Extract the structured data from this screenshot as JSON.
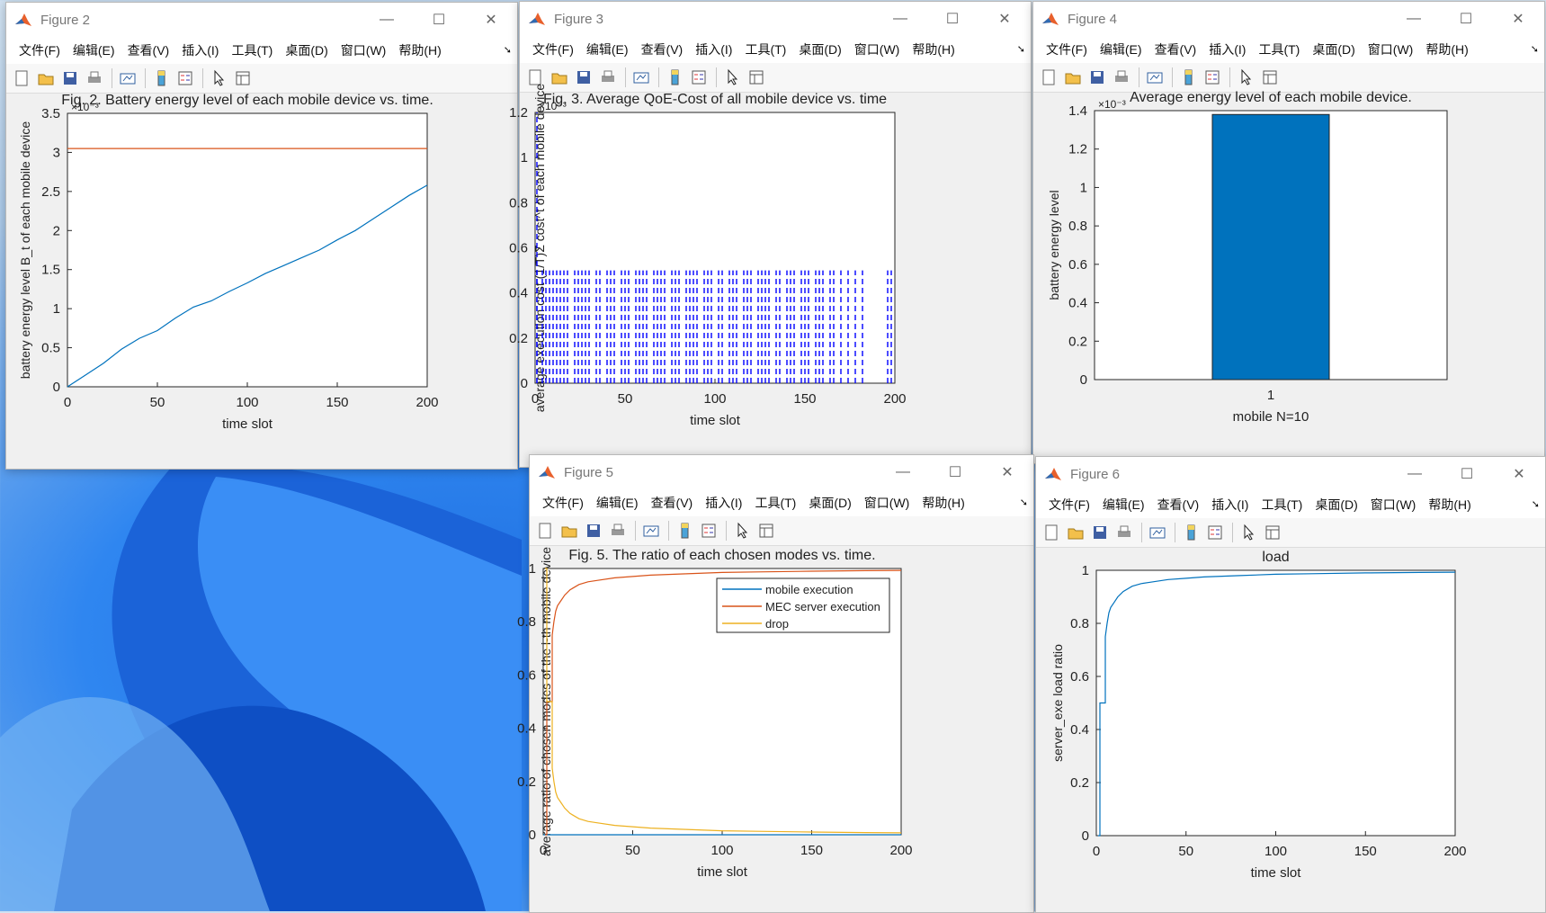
{
  "menu": [
    "文件(F)",
    "编辑(E)",
    "查看(V)",
    "插入(I)",
    "工具(T)",
    "桌面(D)",
    "窗口(W)",
    "帮助(H)"
  ],
  "more_glyph": "➘",
  "icons": [
    "new-file-icon",
    "open-folder-icon",
    "save-icon",
    "print-icon",
    "link-plot-icon",
    "colorbar-icon",
    "legend-icon",
    "pointer-icon",
    "property-inspector-icon"
  ],
  "controls": {
    "minimize": "—",
    "maximize": "☐",
    "close": "✕"
  },
  "colors": {
    "blue": "#0072bd",
    "orange": "#d95319",
    "yellow": "#edb120",
    "bar": "#0072bd",
    "dashed": "#0000ff"
  },
  "windows": {
    "fig2": {
      "title": "Figure 2",
      "chart_data": {
        "type": "line",
        "title": "Fig. 2. Battery energy level of each mobile device vs. time.",
        "xlabel": "time slot",
        "ylabel": "battery energy level B_t of each mobile device",
        "exponent_label": "×10⁻³",
        "xlim": [
          0,
          200
        ],
        "ylim": [
          0,
          3.5
        ],
        "xticks": [
          "0",
          "50",
          "100",
          "150",
          "200"
        ],
        "yticks": [
          "0",
          "0.5",
          "1",
          "1.5",
          "2",
          "2.5",
          "3",
          "3.5"
        ],
        "series": [
          {
            "color": "#0072bd",
            "x": [
              0,
              10,
              20,
              30,
              40,
              50,
              60,
              70,
              80,
              90,
              100,
              110,
              120,
              130,
              140,
              150,
              160,
              170,
              180,
              190,
              200
            ],
            "y": [
              0,
              0.15,
              0.3,
              0.48,
              0.62,
              0.72,
              0.88,
              1.02,
              1.1,
              1.22,
              1.33,
              1.45,
              1.55,
              1.65,
              1.75,
              1.88,
              2.0,
              2.15,
              2.3,
              2.45,
              2.58
            ]
          },
          {
            "color": "#d95319",
            "x": [
              0,
              200
            ],
            "y": [
              3.05,
              3.05
            ]
          }
        ]
      }
    },
    "fig3": {
      "title": "Figure 3",
      "chart_data": {
        "type": "line",
        "title": "Fig. 3. Average QoE-Cost of all mobile device vs. time",
        "xlabel": "time slot",
        "ylabel": "average execution cost (1/T)Σ cost^t of each mobile device",
        "exponent_label": "×10⁻³",
        "xlim": [
          0,
          200
        ],
        "ylim": [
          0,
          1.2
        ],
        "xticks": [
          "0",
          "50",
          "100",
          "150",
          "200"
        ],
        "yticks": [
          "0",
          "0.2",
          "0.4",
          "0.6",
          "0.8",
          "1",
          "1.2"
        ],
        "line_style": "dashed",
        "pulse_high": 0.5,
        "pulses": [
          1,
          4,
          6,
          8,
          10,
          12,
          14,
          16,
          18,
          22,
          24,
          26,
          28,
          30,
          34,
          36,
          40,
          42,
          44,
          48,
          50,
          52,
          56,
          58,
          60,
          62,
          66,
          68,
          70,
          72,
          76,
          78,
          80,
          84,
          86,
          88,
          90,
          94,
          96,
          98,
          102,
          104,
          108,
          110,
          112,
          116,
          118,
          120,
          124,
          126,
          128,
          130,
          134,
          136,
          140,
          142,
          144,
          148,
          150,
          152,
          156,
          158,
          160,
          164,
          166,
          170,
          174,
          178,
          182,
          196,
          198
        ]
      }
    },
    "fig4": {
      "title": "Figure 4",
      "chart_data": {
        "type": "bar",
        "title": "Average energy level of each mobile device.",
        "xlabel": "mobile N=10",
        "ylabel": "battery energy level",
        "exponent_label": "×10⁻³",
        "categories": [
          "1"
        ],
        "values": [
          1.38
        ],
        "ylim": [
          0,
          1.4
        ],
        "yticks": [
          "0",
          "0.2",
          "0.4",
          "0.6",
          "0.8",
          "1",
          "1.2",
          "1.4"
        ]
      }
    },
    "fig5": {
      "title": "Figure 5",
      "chart_data": {
        "type": "line",
        "title": "Fig. 5. The ratio of each chosen modes vs. time.",
        "xlabel": "time slot",
        "ylabel": "average ratio of chosen modes of the i-th mobile device",
        "xlim": [
          0,
          200
        ],
        "ylim": [
          0,
          1
        ],
        "xticks": [
          "0",
          "50",
          "100",
          "150",
          "200"
        ],
        "yticks": [
          "0",
          "0.2",
          "0.4",
          "0.6",
          "0.8",
          "1"
        ],
        "legend": [
          "mobile execution",
          "MEC server execution",
          "drop"
        ],
        "legend_position": "top-right",
        "series": [
          {
            "name": "mobile execution",
            "color": "#0072bd",
            "x": [
              0,
              200
            ],
            "y": [
              0,
              0
            ]
          },
          {
            "name": "MEC server execution",
            "color": "#d95319",
            "x": [
              1,
              2,
              2,
              5,
              5,
              6,
              7,
              8,
              10,
              12,
              15,
              20,
              25,
              30,
              40,
              50,
              60,
              80,
              100,
              120,
              150,
              180,
              200
            ],
            "y": [
              0,
              0,
              0.5,
              0.5,
              0.75,
              0.8,
              0.84,
              0.86,
              0.88,
              0.9,
              0.92,
              0.94,
              0.95,
              0.955,
              0.965,
              0.97,
              0.975,
              0.98,
              0.985,
              0.987,
              0.99,
              0.992,
              0.993
            ]
          },
          {
            "name": "drop",
            "color": "#edb120",
            "x": [
              1,
              2,
              2,
              5,
              5,
              6,
              7,
              8,
              10,
              12,
              15,
              20,
              25,
              30,
              40,
              50,
              60,
              80,
              100,
              120,
              150,
              180,
              200
            ],
            "y": [
              1,
              1,
              0.5,
              0.5,
              0.25,
              0.2,
              0.16,
              0.14,
              0.12,
              0.1,
              0.08,
              0.06,
              0.05,
              0.045,
              0.035,
              0.03,
              0.025,
              0.02,
              0.015,
              0.013,
              0.01,
              0.008,
              0.007
            ]
          }
        ]
      }
    },
    "fig6": {
      "title": "Figure 6",
      "chart_data": {
        "type": "line",
        "title": "load",
        "xlabel": "time slot",
        "ylabel": "server_exe load ratio",
        "xlim": [
          0,
          200
        ],
        "ylim": [
          0,
          1
        ],
        "xticks": [
          "0",
          "50",
          "100",
          "150",
          "200"
        ],
        "yticks": [
          "0",
          "0.2",
          "0.4",
          "0.6",
          "0.8",
          "1"
        ],
        "series": [
          {
            "color": "#0072bd",
            "x": [
              1,
              2,
              2,
              5,
              5,
              6,
              7,
              8,
              10,
              12,
              15,
              20,
              25,
              30,
              40,
              50,
              60,
              80,
              100,
              120,
              150,
              180,
              200
            ],
            "y": [
              0,
              0,
              0.5,
              0.5,
              0.75,
              0.8,
              0.84,
              0.86,
              0.88,
              0.9,
              0.92,
              0.94,
              0.95,
              0.955,
              0.965,
              0.97,
              0.975,
              0.98,
              0.985,
              0.987,
              0.99,
              0.992,
              0.993
            ]
          }
        ]
      }
    }
  }
}
